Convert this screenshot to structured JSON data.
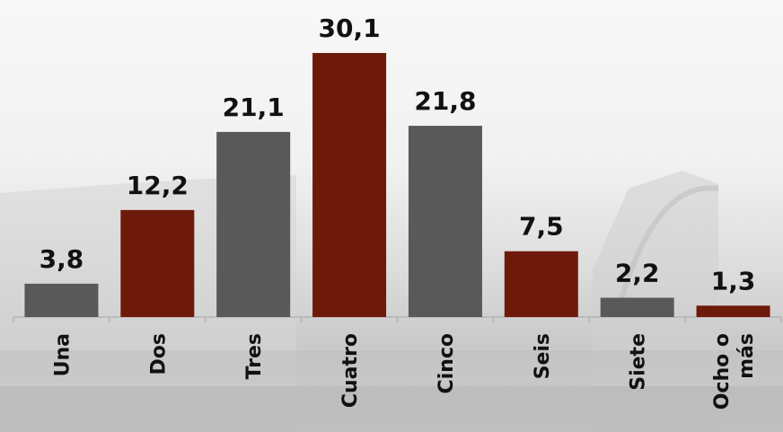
{
  "chart_data": {
    "type": "bar",
    "categories": [
      "Una",
      "Dos",
      "Tres",
      "Cuatro",
      "Cinco",
      "Seis",
      "Siete",
      "Ocho o más"
    ],
    "category_lines": [
      [
        "Una"
      ],
      [
        "Dos"
      ],
      [
        "Tres"
      ],
      [
        "Cuatro"
      ],
      [
        "Cinco"
      ],
      [
        "Seis"
      ],
      [
        "Siete"
      ],
      [
        "Ocho o",
        "más"
      ]
    ],
    "values": [
      3.8,
      12.2,
      21.1,
      30.1,
      21.8,
      7.5,
      2.2,
      1.3
    ],
    "value_labels": [
      "3,8",
      "12,2",
      "21,1",
      "30,1",
      "21,8",
      "7,5",
      "2,2",
      "1,3"
    ],
    "bar_colors": [
      "#595959",
      "#6e1a0b",
      "#595959",
      "#6e1a0b",
      "#595959",
      "#6e1a0b",
      "#595959",
      "#6e1a0b"
    ],
    "colors": {
      "gray": "#595959",
      "maroon": "#6e1a0b",
      "axis": "#b3b3b3"
    },
    "ylim": [
      0,
      30.1
    ],
    "grid": false,
    "legend": "none",
    "title": "",
    "xlabel": "",
    "ylabel": ""
  }
}
